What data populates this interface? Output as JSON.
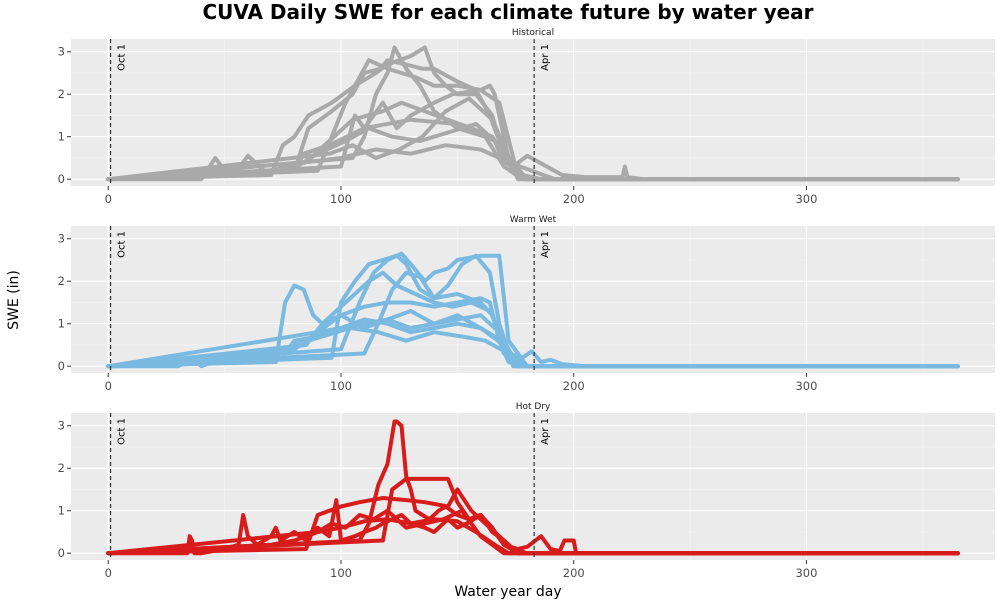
{
  "chart_data": {
    "type": "line",
    "title": "CUVA Daily SWE for each climate future by water year",
    "xlabel": "Water year day",
    "ylabel": "SWE (in)",
    "xlim": [
      -16,
      381
    ],
    "ylim": [
      -0.16,
      3.3
    ],
    "x_ticks": [
      0,
      100,
      200,
      300
    ],
    "y_ticks": [
      0,
      1,
      2,
      3
    ],
    "grid": true,
    "vlines": [
      {
        "x": 1,
        "label": "Oct 1"
      },
      {
        "x": 183,
        "label": "Apr 1"
      }
    ],
    "panels": [
      {
        "name": "Historical",
        "color": "#a9a9a9",
        "series": [
          {
            "x": [
              0,
              40,
              46,
              50,
              54,
              60,
              68,
              76,
              80,
              84,
              95,
              110,
              130,
              150,
              160,
              166,
              170,
              174,
              180,
              195,
              205,
              221,
              222,
              223,
              230,
              365
            ],
            "y": [
              0,
              0,
              0.5,
              0.2,
              0.1,
              0.55,
              0.15,
              0.3,
              0.2,
              0.6,
              0.8,
              1.2,
              1.4,
              1.3,
              1.1,
              0.9,
              0.4,
              0.3,
              0.55,
              0.1,
              0.05,
              0.05,
              0.3,
              0.05,
              0,
              0
            ]
          },
          {
            "x": [
              0,
              70,
              75,
              80,
              86,
              96,
              106,
              115,
              120,
              125,
              130,
              136,
              140,
              145,
              150,
              158,
              165,
              170,
              176,
              182,
              190,
              365
            ],
            "y": [
              0,
              0.1,
              0.8,
              1.0,
              1.5,
              1.8,
              2.2,
              2.5,
              2.7,
              2.8,
              2.9,
              3.1,
              2.5,
              2.2,
              2.0,
              2.0,
              1.5,
              0.5,
              0.1,
              0,
              0,
              0
            ]
          },
          {
            "x": [
              0,
              80,
              86,
              96,
              105,
              110,
              117,
              120,
              128,
              135,
              140,
              150,
              158,
              164,
              170,
              180,
              365
            ],
            "y": [
              0,
              0.2,
              1.2,
              1.6,
              2.0,
              2.5,
              2.6,
              2.8,
              2.7,
              2.6,
              2.6,
              2.3,
              2.1,
              1.5,
              0.6,
              0,
              0
            ]
          },
          {
            "x": [
              0,
              90,
              96,
              102,
              108,
              112,
              120,
              126,
              132,
              140,
              150,
              160,
              164,
              166,
              172,
              180,
              365
            ],
            "y": [
              0,
              0.2,
              1.0,
              1.8,
              2.4,
              2.8,
              2.6,
              2.5,
              2.4,
              2.2,
              2.2,
              2.1,
              2.2,
              2.0,
              0.5,
              0,
              0
            ]
          },
          {
            "x": [
              0,
              100,
              106,
              110,
              118,
              124,
              130,
              140,
              148,
              160,
              168,
              175,
              180,
              365
            ],
            "y": [
              0,
              0.3,
              1.5,
              1.2,
              1.8,
              1.2,
              1.5,
              1.8,
              2.0,
              2.1,
              1.8,
              0.3,
              0,
              0
            ]
          },
          {
            "x": [
              0,
              85,
              95,
              105,
              118,
              126,
              136,
              146,
              156,
              165,
              172,
              180,
              365
            ],
            "y": [
              0,
              0.4,
              0.9,
              1.4,
              1.6,
              1.8,
              1.6,
              1.4,
              1.2,
              1.0,
              0.4,
              0,
              0
            ]
          },
          {
            "x": [
              0,
              78,
              90,
              102,
              112,
              122,
              134,
              146,
              158,
              168,
              178,
              186,
              365
            ],
            "y": [
              0,
              0.2,
              0.6,
              0.9,
              1.2,
              1.0,
              0.9,
              1.1,
              1.3,
              0.8,
              0.1,
              0,
              0
            ]
          },
          {
            "x": [
              0,
              95,
              105,
              115,
              125,
              135,
              145,
              155,
              165,
              170,
              176,
              365
            ],
            "y": [
              0,
              0.6,
              0.8,
              0.5,
              0.7,
              1.0,
              1.6,
              1.9,
              1.4,
              0.8,
              0,
              0
            ]
          },
          {
            "x": [
              0,
              60,
              70,
              85,
              100,
              115,
              130,
              145,
              160,
              172,
              182,
              192,
              365
            ],
            "y": [
              0,
              0.1,
              0.2,
              0.4,
              0.5,
              0.7,
              0.6,
              0.8,
              0.7,
              0.4,
              0.2,
              0,
              0
            ]
          },
          {
            "x": [
              0,
              105,
              110,
              115,
              120,
              123,
              128,
              134,
              140,
              150,
              162,
              170,
              178,
              365
            ],
            "y": [
              0,
              0.5,
              1.0,
              2.0,
              2.5,
              3.1,
              2.6,
              2.2,
              1.6,
              1.2,
              1.0,
              0.3,
              0,
              0
            ]
          }
        ]
      },
      {
        "name": "Warm Wet",
        "color": "#7ab9e0",
        "series": [
          {
            "x": [
              0,
              30,
              34,
              36,
              40,
              50,
              55,
              60,
              66,
              70,
              76,
              80,
              90,
              100,
              110,
              120,
              130,
              140,
              150,
              160,
              166,
              172,
              178,
              182,
              186,
              190,
              195,
              205,
              365
            ],
            "y": [
              0,
              0,
              0.1,
              0.2,
              0,
              0.2,
              0.1,
              0.3,
              0.2,
              0.4,
              0.3,
              0.6,
              0.7,
              0.9,
              1.0,
              1.1,
              0.9,
              1.0,
              1.2,
              0.9,
              0.7,
              0.3,
              0.2,
              0.35,
              0.1,
              0.15,
              0.05,
              0,
              0
            ]
          },
          {
            "x": [
              0,
              72,
              76,
              80,
              84,
              88,
              92,
              100,
              110,
              120,
              130,
              140,
              150,
              160,
              164,
              168,
              172,
              180,
              365
            ],
            "y": [
              0,
              0.1,
              1.5,
              1.9,
              1.8,
              1.2,
              1.0,
              1.2,
              1.4,
              1.5,
              1.5,
              1.4,
              1.5,
              1.6,
              1.5,
              0.6,
              0.1,
              0,
              0
            ]
          },
          {
            "x": [
              0,
              96,
              100,
              106,
              112,
              118,
              124,
              128,
              134,
              140,
              150,
              160,
              165,
              170,
              176,
              365
            ],
            "y": [
              0,
              0.2,
              1.5,
              2.0,
              2.4,
              2.5,
              2.6,
              2.4,
              1.8,
              1.6,
              1.7,
              1.5,
              1.2,
              0.3,
              0,
              0
            ]
          },
          {
            "x": [
              0,
              100,
              108,
              114,
              120,
              126,
              130,
              136,
              140,
              146,
              150,
              160,
              168,
              172,
              180,
              365
            ],
            "y": [
              0,
              0.4,
              1.5,
              2.2,
              2.5,
              2.65,
              2.4,
              2.0,
              2.2,
              2.3,
              2.5,
              2.6,
              2.6,
              0.6,
              0,
              0
            ]
          },
          {
            "x": [
              0,
              85,
              92,
              100,
              106,
              112,
              118,
              124,
              132,
              140,
              148,
              156,
              164,
              170,
              176,
              365
            ],
            "y": [
              0,
              0.5,
              1.0,
              1.4,
              1.7,
              2.0,
              2.2,
              1.9,
              1.7,
              1.5,
              1.4,
              1.5,
              1.3,
              0.6,
              0,
              0
            ]
          },
          {
            "x": [
              0,
              80,
              90,
              100,
              110,
              120,
              130,
              140,
              150,
              160,
              170,
              178,
              365
            ],
            "y": [
              0,
              0.4,
              0.8,
              0.9,
              1.1,
              1.0,
              0.8,
              0.9,
              1.0,
              0.9,
              0.5,
              0,
              0
            ]
          },
          {
            "x": [
              0,
              70,
              80,
              92,
              104,
              116,
              128,
              140,
              152,
              162,
              172,
              180,
              365
            ],
            "y": [
              0,
              0.2,
              0.5,
              0.7,
              0.9,
              0.8,
              0.6,
              0.8,
              0.7,
              0.6,
              0.3,
              0,
              0
            ]
          },
          {
            "x": [
              0,
              110,
              116,
              122,
              128,
              134,
              140,
              146,
              152,
              158,
              164,
              168,
              174,
              365
            ],
            "y": [
              0,
              0.3,
              1.0,
              1.8,
              2.2,
              2.1,
              1.6,
              1.9,
              2.4,
              2.6,
              2.2,
              1.0,
              0,
              0
            ]
          },
          {
            "x": [
              0,
              90,
              100,
              110,
              120,
              130,
              140,
              150,
              160,
              168,
              176,
              365
            ],
            "y": [
              0,
              0.8,
              1.2,
              0.9,
              1.1,
              1.3,
              1.0,
              1.1,
              1.2,
              0.8,
              0,
              0
            ]
          }
        ]
      },
      {
        "name": "Hot Dry",
        "color": "#d81b1b",
        "series": [
          {
            "x": [
              0,
              34,
              35,
              36,
              37,
              40,
              50,
              56,
              58,
              60,
              64,
              70,
              72,
              74,
              80,
              85,
              90,
              95,
              98,
              100,
              106,
              110,
              115,
              118,
              122,
              126,
              130,
              136,
              140,
              146,
              150,
              154,
              160,
              166,
              170,
              176,
              180,
              186,
              190,
              194,
              196,
              200,
              201,
              365
            ],
            "y": [
              0,
              0,
              0.4,
              0.3,
              0,
              0,
              0.1,
              0.2,
              0.9,
              0.4,
              0.2,
              0.4,
              0.6,
              0.3,
              0.5,
              0.3,
              0.6,
              0.4,
              1.25,
              0.3,
              0.4,
              0.5,
              0.6,
              0.7,
              0.8,
              0.9,
              0.7,
              0.6,
              0.5,
              0.8,
              0.6,
              0.7,
              0.9,
              0.5,
              0.2,
              0.1,
              0.15,
              0.4,
              0.1,
              0.05,
              0.3,
              0.3,
              0,
              0
            ]
          },
          {
            "x": [
              0,
              108,
              112,
              116,
              120,
              123,
              124,
              126,
              128,
              130,
              132,
              135,
              138,
              142,
              145,
              150,
              155,
              160,
              165,
              170,
              176,
              365
            ],
            "y": [
              0,
              0.3,
              0.7,
              1.6,
              2.1,
              3.1,
              3.1,
              3.0,
              1.8,
              1.5,
              1.0,
              0.9,
              0.8,
              1.0,
              1.1,
              0.9,
              0.8,
              0.9,
              0.6,
              0.2,
              0,
              0
            ]
          },
          {
            "x": [
              0,
              85,
              90,
              95,
              100,
              108,
              118,
              128,
              136,
              146,
              150,
              156,
              160,
              170,
              176,
              365
            ],
            "y": [
              0,
              0.1,
              0.9,
              1.0,
              1.1,
              1.2,
              1.3,
              1.25,
              1.2,
              1.1,
              1.5,
              1.0,
              0.8,
              0.3,
              0,
              0
            ]
          },
          {
            "x": [
              0,
              118,
              122,
              128,
              134,
              140,
              146,
              150,
              155,
              160,
              165,
              170,
              174,
              180,
              365
            ],
            "y": [
              0,
              0.3,
              1.5,
              1.75,
              1.75,
              1.75,
              1.75,
              1.2,
              0.8,
              0.9,
              0.5,
              0.3,
              0.1,
              0,
              0
            ]
          },
          {
            "x": [
              0,
              70,
              80,
              90,
              100,
              110,
              120,
              130,
              140,
              150,
              158,
              166,
              172,
              365
            ],
            "y": [
              0,
              0.2,
              0.3,
              0.5,
              0.6,
              0.75,
              0.8,
              0.7,
              0.8,
              0.75,
              0.5,
              0.2,
              0,
              0
            ]
          },
          {
            "x": [
              0,
              90,
              96,
              102,
              108,
              114,
              120,
              128,
              136,
              144,
              152,
              160,
              170,
              365
            ],
            "y": [
              0,
              0.5,
              0.7,
              0.6,
              0.9,
              0.8,
              1.0,
              0.6,
              0.7,
              0.8,
              1.0,
              0.4,
              0,
              0
            ]
          }
        ]
      }
    ]
  }
}
